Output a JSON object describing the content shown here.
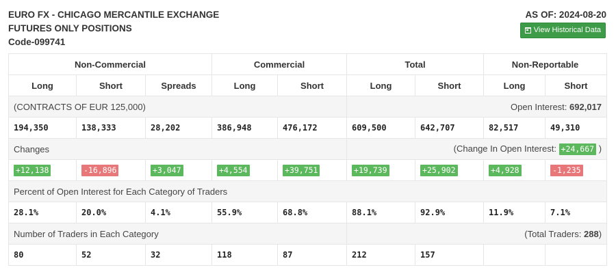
{
  "header": {
    "title_line1": "EURO FX - CHICAGO MERCANTILE EXCHANGE",
    "title_line2": "FUTURES ONLY POSITIONS",
    "code": "Code-099741",
    "as_of": "AS OF: 2024-08-20",
    "historical_button": "View Historical Data",
    "button_color": "#3e9b47"
  },
  "groups": [
    "Non-Commercial",
    "Commercial",
    "Total",
    "Non-Reportable"
  ],
  "columns": [
    "Long",
    "Short",
    "Spreads",
    "Long",
    "Short",
    "Long",
    "Short",
    "Long",
    "Short"
  ],
  "contracts": {
    "label": "(CONTRACTS OF EUR 125,000)",
    "open_interest_label": "Open Interest:",
    "open_interest_value": "692,017"
  },
  "positions": [
    "194,350",
    "138,333",
    "28,202",
    "386,948",
    "476,172",
    "609,500",
    "642,707",
    "82,517",
    "49,310"
  ],
  "changes": {
    "label": "Changes",
    "change_oi_label": "(Change In Open Interest:",
    "change_oi_value": "+24,667",
    "change_oi_close": ")",
    "values": [
      "+12,138",
      "-16,896",
      "+3,047",
      "+4,554",
      "+39,751",
      "+19,739",
      "+25,902",
      "+4,928",
      "-1,235"
    ],
    "positive_color": "#5cb85c",
    "negative_color": "#e8777a"
  },
  "percent": {
    "label": "Percent of Open Interest for Each Category of Traders",
    "values": [
      "28.1%",
      "20.0%",
      "4.1%",
      "55.9%",
      "68.8%",
      "88.1%",
      "92.9%",
      "11.9%",
      "7.1%"
    ]
  },
  "traders": {
    "label": "Number of Traders in Each Category",
    "total_label": "(Total Traders:",
    "total_value": "288",
    "total_close": ")",
    "values": [
      "80",
      "52",
      "32",
      "118",
      "87",
      "212",
      "157",
      "",
      ""
    ]
  }
}
